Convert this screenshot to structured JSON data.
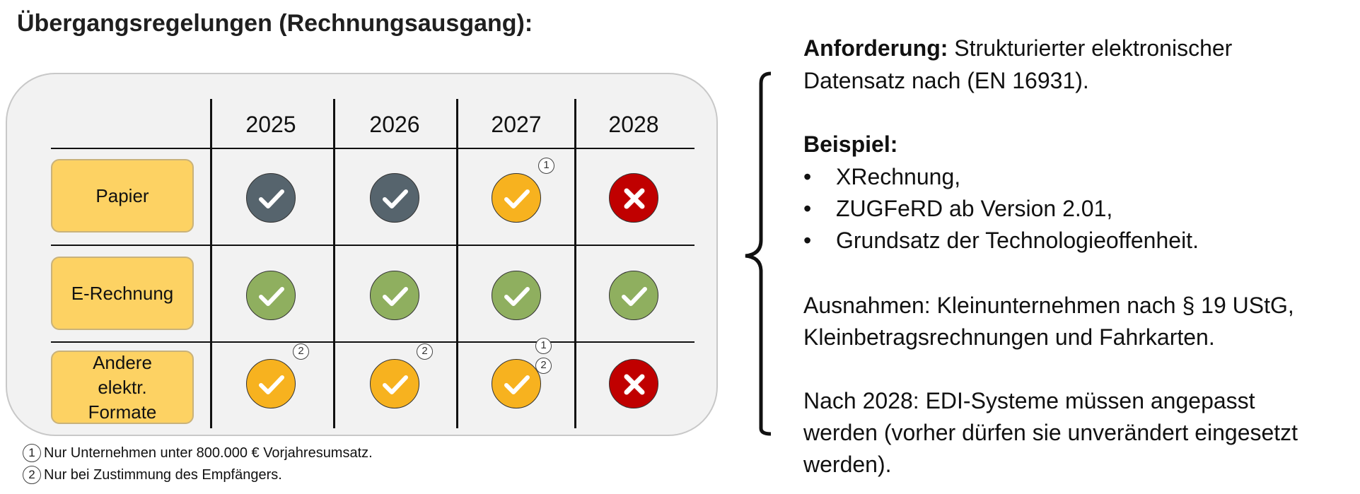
{
  "title": "Übergangsregelungen (Rechnungsausgang):",
  "table": {
    "years": [
      "2025",
      "2026",
      "2027",
      "2028"
    ],
    "rows": [
      {
        "label": "Papier",
        "cells": [
          {
            "status": "allowed-gray",
            "notes": []
          },
          {
            "status": "allowed-gray",
            "notes": []
          },
          {
            "status": "allowed-conditional",
            "notes": [
              "1"
            ]
          },
          {
            "status": "not-allowed",
            "notes": []
          }
        ]
      },
      {
        "label": "E-Rechnung",
        "cells": [
          {
            "status": "allowed",
            "notes": []
          },
          {
            "status": "allowed",
            "notes": []
          },
          {
            "status": "allowed",
            "notes": []
          },
          {
            "status": "allowed",
            "notes": []
          }
        ]
      },
      {
        "label": "Andere\nelektr.\nFormate",
        "cells": [
          {
            "status": "allowed-conditional",
            "notes": [
              "2"
            ]
          },
          {
            "status": "allowed-conditional",
            "notes": [
              "2"
            ]
          },
          {
            "status": "allowed-conditional",
            "notes": [
              "1",
              "2"
            ]
          },
          {
            "status": "not-allowed",
            "notes": []
          }
        ]
      }
    ]
  },
  "status_colors": {
    "allowed-gray": "#56646d",
    "allowed": "#8faf5f",
    "allowed-conditional": "#f7b21f",
    "not-allowed": "#c00000"
  },
  "status_icons": {
    "allowed-gray": "check-icon",
    "allowed": "check-icon",
    "allowed-conditional": "check-icon",
    "not-allowed": "cross-icon"
  },
  "footnotes": [
    {
      "marker": "1",
      "text": "Nur Unternehmen unter 800.000 € Vorjahresumsatz."
    },
    {
      "marker": "2",
      "text": "Nur bei Zustimmung des Empfängers."
    }
  ],
  "right": {
    "requirement_label": "Anforderung:",
    "requirement_line1": " Strukturierter elektronischer",
    "requirement_line2": "Datensatz nach (EN 16931).",
    "example_label": "Beispiel:",
    "bullet_symbol": "•",
    "bullets": [
      "XRechnung,",
      "ZUGFeRD ab Version 2.01,",
      "Grundsatz der Technologieoffenheit."
    ],
    "exceptions_line1": "Ausnahmen: Kleinunternehmen nach § 19 UStG,",
    "exceptions_line2": "Kleinbetragsrechnungen und Fahrkarten.",
    "after_line1": "Nach 2028: EDI-Systeme müssen angepasst",
    "after_line2": "werden (vorher dürfen sie unverändert eingesetzt",
    "after_line3": "werden)."
  }
}
